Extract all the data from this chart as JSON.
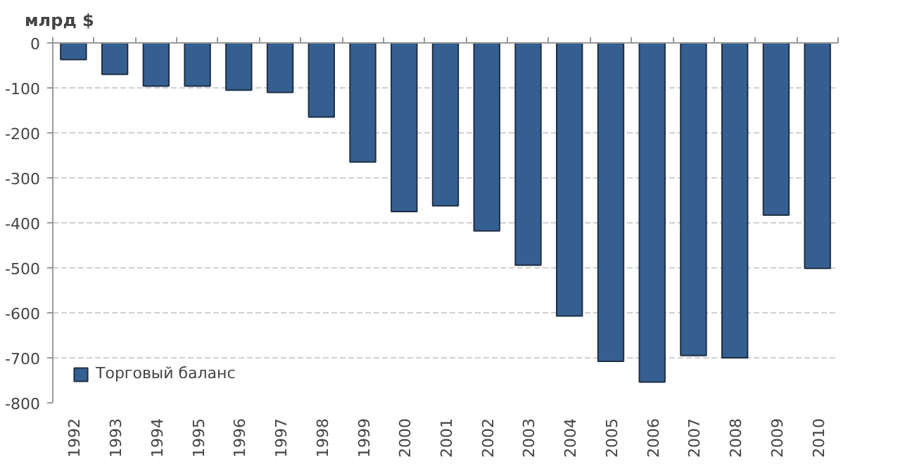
{
  "chart_data": {
    "type": "bar",
    "ylabel": "млрд $",
    "categories": [
      "1992",
      "1993",
      "1994",
      "1995",
      "1996",
      "1997",
      "1998",
      "1999",
      "2000",
      "2001",
      "2002",
      "2003",
      "2004",
      "2005",
      "2006",
      "2007",
      "2008",
      "2009",
      "2010"
    ],
    "series": [
      {
        "name": "Торговый баланс",
        "color": "#365f91",
        "values": [
          -37,
          -70,
          -96,
          -96,
          -105,
          -110,
          -165,
          -265,
          -375,
          -362,
          -418,
          -494,
          -607,
          -708,
          -754,
          -695,
          -700,
          -383,
          -501
        ]
      }
    ],
    "ylim": [
      -800,
      0
    ],
    "yticks": [
      0,
      -100,
      -200,
      -300,
      -400,
      -500,
      -600,
      -700,
      -800
    ],
    "grid": "y",
    "legend": "bottom left"
  }
}
